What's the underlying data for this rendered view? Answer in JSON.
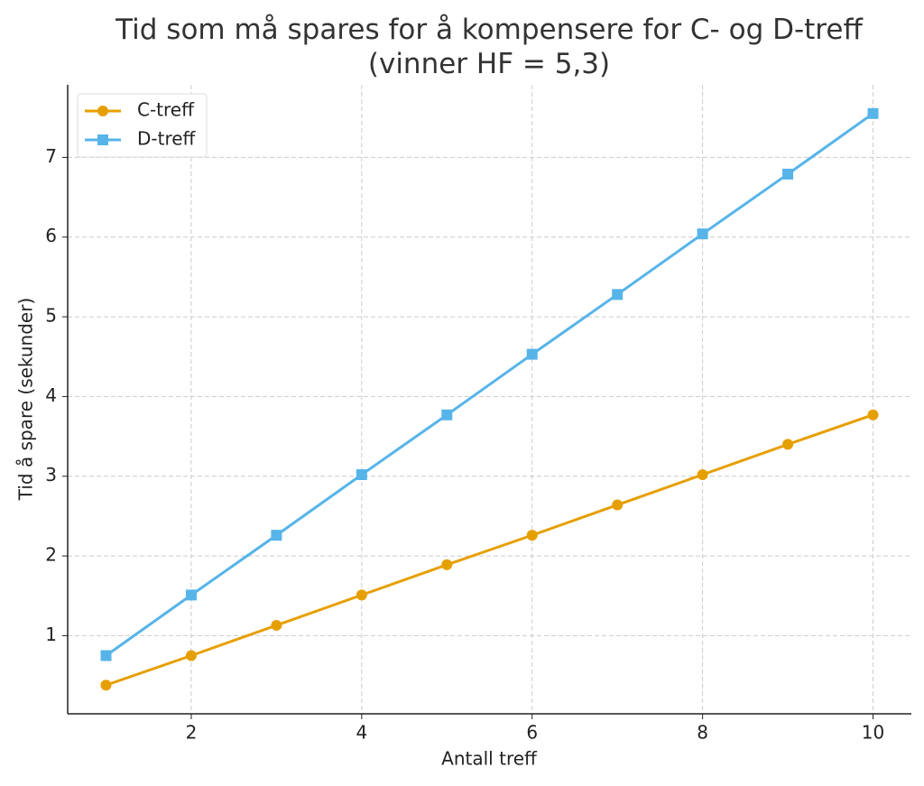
{
  "chart_data": {
    "type": "line",
    "title": "Tid som må spares for å kompensere for C- og D-treff\n(vinner HF = 5,3)",
    "x_label": "Antall treff",
    "y_label": "Tid å spare (sekunder)",
    "x": [
      1,
      2,
      3,
      4,
      5,
      6,
      7,
      8,
      9,
      10
    ],
    "series": [
      {
        "name": "C-treff",
        "color": "#e69f00",
        "marker": "circle",
        "values": [
          0.38,
          0.75,
          1.13,
          1.51,
          1.89,
          2.26,
          2.64,
          3.02,
          3.4,
          3.77
        ]
      },
      {
        "name": "D-treff",
        "color": "#56b4e9",
        "marker": "square",
        "values": [
          0.75,
          1.51,
          2.26,
          3.02,
          3.77,
          4.53,
          5.28,
          6.04,
          6.79,
          7.55
        ]
      }
    ],
    "xlim": [
      0.55,
      10.45
    ],
    "xticks": [
      2,
      4,
      6,
      8,
      10
    ],
    "ylim": [
      0.02,
      7.91
    ],
    "yticks": [
      1,
      2,
      3,
      4,
      5,
      6,
      7
    ],
    "grid": true,
    "legend": "upper-left"
  }
}
